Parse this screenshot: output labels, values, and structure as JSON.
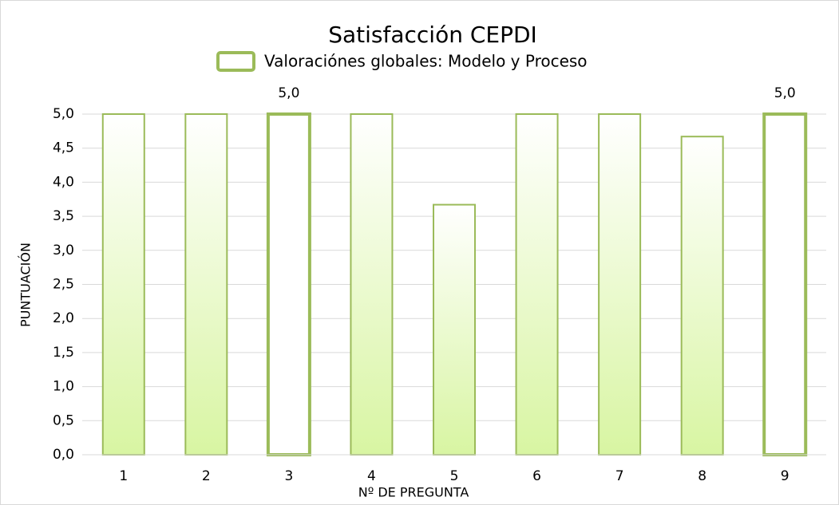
{
  "chart_data": {
    "type": "bar",
    "title": "Satisfacción CEPDI",
    "categories": [
      "1",
      "2",
      "3",
      "4",
      "5",
      "6",
      "7",
      "8",
      "9"
    ],
    "series": [
      {
        "name": "Valoraciónes globales: Modelo y Proceso",
        "color": "#9bbb59",
        "values": [
          5,
          5,
          5,
          5,
          3.67,
          5,
          5,
          4.67,
          5
        ],
        "value_labels": [
          null,
          null,
          "5,0",
          null,
          null,
          null,
          null,
          null,
          "5,0"
        ],
        "bar_colors": [
          "#d8f5a2",
          "#d8f5a2",
          "#ffffff",
          "#d8f5a2",
          "#d8f5a2",
          "#d8f5a2",
          "#d8f5a2",
          "#d8f5a2",
          "#ffffff"
        ]
      }
    ],
    "xlabel": "Nº DE PREGUNTA",
    "ylabel": "PUNTUACIÓN",
    "ylim": [
      0,
      5
    ],
    "yticks": [
      {
        "value": 0,
        "label": "0,0"
      },
      {
        "value": 0.5,
        "label": "0,5"
      },
      {
        "value": 1,
        "label": "1,0"
      },
      {
        "value": 1.5,
        "label": "1,5"
      },
      {
        "value": 2,
        "label": "2,0"
      },
      {
        "value": 2.5,
        "label": "2,5"
      },
      {
        "value": 3,
        "label": "3,0"
      },
      {
        "value": 3.5,
        "label": "3,5"
      },
      {
        "value": 4,
        "label": "4,0"
      },
      {
        "value": 4.5,
        "label": "4,5"
      },
      {
        "value": 5,
        "label": "5,0"
      }
    ],
    "grid": true,
    "legend": "top"
  }
}
